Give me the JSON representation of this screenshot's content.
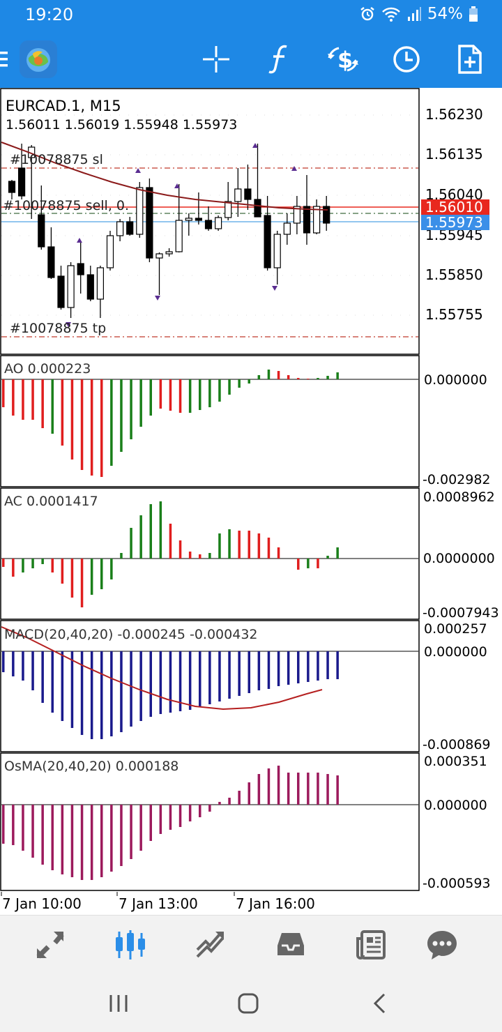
{
  "status_bar": {
    "time": "19:20",
    "battery": "54%",
    "icons": [
      "alarm-icon",
      "wifi-icon",
      "signal-icon",
      "battery-icon"
    ]
  },
  "toolbar": {
    "icons": [
      "menu-icon",
      "app-logo",
      "crosshair-icon",
      "function-icon",
      "trade-icon",
      "timeframe-clock-icon",
      "new-order-icon"
    ]
  },
  "main_chart": {
    "symbol": "EURCAD.1, M15",
    "ohlc": "1.56011 1.56019 1.55948 1.55973",
    "sl_label": "#10078875 sl",
    "order_label": "#10078875 sell, 0.",
    "tp_label": "#10078875 tp",
    "price_scale": [
      "1.56230",
      "1.56135",
      "1.56040",
      "1.55945",
      "1.55850",
      "1.55755"
    ],
    "bid_tag": "1.56010",
    "ask_tag": "1.55973",
    "colors": {
      "bid": "#e8281e",
      "ask": "#3b8fe8",
      "ma": "#8b1a1a",
      "order": "#c0392b"
    }
  },
  "ao": {
    "label": "AO 0.000223",
    "scale_top": "0.000000",
    "scale_bottom": "-0.002982"
  },
  "ac": {
    "label": "AC 0.0001417",
    "scale_top": "0.0008962",
    "scale_mid": "0.0000000",
    "scale_bottom": "-0.0007943"
  },
  "macd": {
    "label": "MACD(20,40,20) -0.000245 -0.000432",
    "scale_top": "0.000257",
    "scale_mid": "0.000000",
    "scale_bottom": "-0.000869"
  },
  "osma": {
    "label": "OsMA(20,40,20) 0.000188",
    "scale_top": "0.000351",
    "scale_mid": "0.000000",
    "scale_bottom": "-0.000593"
  },
  "time_axis": [
    "7 Jan 10:00",
    "7 Jan 13:00",
    "7 Jan 16:00"
  ],
  "bottom_nav": {
    "active": "chart",
    "items": [
      "quotes-icon",
      "chart-icon",
      "trade-icon",
      "history-icon",
      "news-icon",
      "chat-icon"
    ]
  },
  "system_nav": {
    "items": [
      "recent-apps-icon",
      "home-icon",
      "back-icon"
    ]
  }
}
